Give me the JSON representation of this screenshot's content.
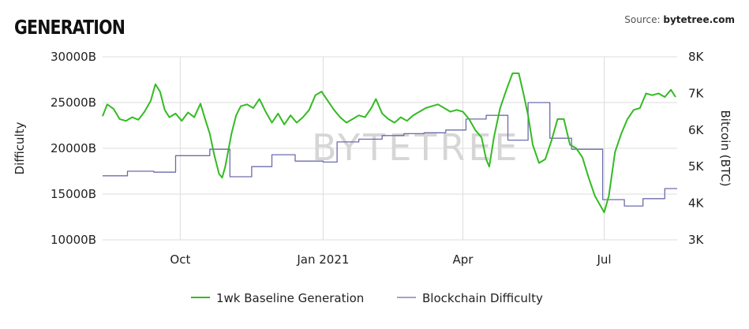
{
  "header": {
    "title": "GENERATION",
    "source_label": "Source:",
    "source_value": "bytetree.com"
  },
  "watermark": "BYTETREE",
  "chart_data": {
    "type": "line",
    "xlabel": "",
    "ylabel": "Difficulty",
    "y2label": "Bitcoin (BTC)",
    "xlim": [
      "2020-08-12",
      "2021-08-17"
    ],
    "ylim": [
      10000,
      30000
    ],
    "y2lim": [
      3000,
      8000
    ],
    "x_ticks": [
      {
        "date": "2020-10-01",
        "label": "Oct"
      },
      {
        "date": "2021-01-01",
        "label": "Jan 2021"
      },
      {
        "date": "2021-04-01",
        "label": "Apr"
      },
      {
        "date": "2021-07-01",
        "label": "Jul"
      }
    ],
    "y_ticks": [
      {
        "value": 10000,
        "label": "10000B"
      },
      {
        "value": 15000,
        "label": "15000B"
      },
      {
        "value": 20000,
        "label": "20000B"
      },
      {
        "value": 25000,
        "label": "25000B"
      },
      {
        "value": 30000,
        "label": "30000B"
      }
    ],
    "y2_ticks": [
      {
        "value": 3000,
        "label": "3K"
      },
      {
        "value": 4000,
        "label": "4K"
      },
      {
        "value": 5000,
        "label": "5K"
      },
      {
        "value": 6000,
        "label": "6K"
      },
      {
        "value": 7000,
        "label": "7K"
      },
      {
        "value": 8000,
        "label": "8K"
      }
    ],
    "grid": true,
    "legend_position": "bottom",
    "series": [
      {
        "name": "1wk Baseline Generation",
        "axis": "right",
        "color": "#33bb22",
        "step": false,
        "points": [
          [
            "2020-08-12",
            6380
          ],
          [
            "2020-08-15",
            6700
          ],
          [
            "2020-08-19",
            6580
          ],
          [
            "2020-08-23",
            6300
          ],
          [
            "2020-08-27",
            6250
          ],
          [
            "2020-08-31",
            6350
          ],
          [
            "2020-09-04",
            6280
          ],
          [
            "2020-09-08",
            6500
          ],
          [
            "2020-09-12",
            6800
          ],
          [
            "2020-09-15",
            7250
          ],
          [
            "2020-09-18",
            7050
          ],
          [
            "2020-09-21",
            6550
          ],
          [
            "2020-09-24",
            6350
          ],
          [
            "2020-09-28",
            6450
          ],
          [
            "2020-10-02",
            6250
          ],
          [
            "2020-10-06",
            6480
          ],
          [
            "2020-10-10",
            6350
          ],
          [
            "2020-10-14",
            6720
          ],
          [
            "2020-10-17",
            6300
          ],
          [
            "2020-10-20",
            5900
          ],
          [
            "2020-10-23",
            5300
          ],
          [
            "2020-10-26",
            4800
          ],
          [
            "2020-10-28",
            4700
          ],
          [
            "2020-10-30",
            5000
          ],
          [
            "2020-11-03",
            5900
          ],
          [
            "2020-11-06",
            6400
          ],
          [
            "2020-11-09",
            6650
          ],
          [
            "2020-11-13",
            6700
          ],
          [
            "2020-11-17",
            6600
          ],
          [
            "2020-11-21",
            6850
          ],
          [
            "2020-11-25",
            6500
          ],
          [
            "2020-11-29",
            6200
          ],
          [
            "2020-12-03",
            6450
          ],
          [
            "2020-12-07",
            6150
          ],
          [
            "2020-12-11",
            6400
          ],
          [
            "2020-12-15",
            6200
          ],
          [
            "2020-12-19",
            6350
          ],
          [
            "2020-12-23",
            6550
          ],
          [
            "2020-12-27",
            6950
          ],
          [
            "2020-12-31",
            7050
          ],
          [
            "2021-01-04",
            6800
          ],
          [
            "2021-01-08",
            6550
          ],
          [
            "2021-01-12",
            6350
          ],
          [
            "2021-01-16",
            6200
          ],
          [
            "2021-01-20",
            6300
          ],
          [
            "2021-01-24",
            6400
          ],
          [
            "2021-01-28",
            6350
          ],
          [
            "2021-02-01",
            6600
          ],
          [
            "2021-02-04",
            6850
          ],
          [
            "2021-02-08",
            6450
          ],
          [
            "2021-02-12",
            6300
          ],
          [
            "2021-02-16",
            6200
          ],
          [
            "2021-02-20",
            6350
          ],
          [
            "2021-02-24",
            6250
          ],
          [
            "2021-02-28",
            6400
          ],
          [
            "2021-03-04",
            6500
          ],
          [
            "2021-03-08",
            6600
          ],
          [
            "2021-03-12",
            6650
          ],
          [
            "2021-03-16",
            6700
          ],
          [
            "2021-03-20",
            6600
          ],
          [
            "2021-03-24",
            6500
          ],
          [
            "2021-03-28",
            6550
          ],
          [
            "2021-04-01",
            6500
          ],
          [
            "2021-04-05",
            6300
          ],
          [
            "2021-04-09",
            6000
          ],
          [
            "2021-04-13",
            5800
          ],
          [
            "2021-04-16",
            5200
          ],
          [
            "2021-04-18",
            5000
          ],
          [
            "2021-04-21",
            5800
          ],
          [
            "2021-04-25",
            6600
          ],
          [
            "2021-04-29",
            7100
          ],
          [
            "2021-05-03",
            7550
          ],
          [
            "2021-05-07",
            7550
          ],
          [
            "2021-05-10",
            7000
          ],
          [
            "2021-05-13",
            6400
          ],
          [
            "2021-05-16",
            5600
          ],
          [
            "2021-05-20",
            5100
          ],
          [
            "2021-05-24",
            5200
          ],
          [
            "2021-05-28",
            5700
          ],
          [
            "2021-06-01",
            6300
          ],
          [
            "2021-06-05",
            6300
          ],
          [
            "2021-06-09",
            5600
          ],
          [
            "2021-06-13",
            5500
          ],
          [
            "2021-06-17",
            5250
          ],
          [
            "2021-06-21",
            4700
          ],
          [
            "2021-06-25",
            4200
          ],
          [
            "2021-06-29",
            3900
          ],
          [
            "2021-07-01",
            3750
          ],
          [
            "2021-07-04",
            4200
          ],
          [
            "2021-07-08",
            5400
          ],
          [
            "2021-07-12",
            5900
          ],
          [
            "2021-07-16",
            6300
          ],
          [
            "2021-07-20",
            6550
          ],
          [
            "2021-07-24",
            6600
          ],
          [
            "2021-07-28",
            7000
          ],
          [
            "2021-08-01",
            6950
          ],
          [
            "2021-08-05",
            7000
          ],
          [
            "2021-08-09",
            6900
          ],
          [
            "2021-08-13",
            7100
          ],
          [
            "2021-08-16",
            6900
          ]
        ]
      },
      {
        "name": "Blockchain Difficulty",
        "axis": "left",
        "color": "#6c6cae",
        "step": true,
        "points": [
          [
            "2020-08-12",
            17000
          ],
          [
            "2020-08-28",
            17500
          ],
          [
            "2020-09-14",
            17400
          ],
          [
            "2020-09-28",
            19200
          ],
          [
            "2020-10-20",
            19900
          ],
          [
            "2020-11-02",
            16900
          ],
          [
            "2020-11-16",
            18000
          ],
          [
            "2020-11-29",
            19300
          ],
          [
            "2020-12-14",
            18600
          ],
          [
            "2021-01-01",
            18500
          ],
          [
            "2021-01-10",
            20700
          ],
          [
            "2021-01-24",
            21000
          ],
          [
            "2021-02-08",
            21400
          ],
          [
            "2021-02-22",
            21600
          ],
          [
            "2021-03-07",
            21700
          ],
          [
            "2021-03-21",
            22000
          ],
          [
            "2021-04-03",
            23200
          ],
          [
            "2021-04-16",
            23600
          ],
          [
            "2021-04-30",
            20900
          ],
          [
            "2021-05-13",
            25000
          ],
          [
            "2021-05-27",
            21100
          ],
          [
            "2021-06-10",
            19900
          ],
          [
            "2021-06-30",
            14400
          ],
          [
            "2021-07-14",
            13700
          ],
          [
            "2021-07-26",
            14500
          ],
          [
            "2021-08-09",
            15600
          ],
          [
            "2021-08-17",
            15600
          ]
        ]
      }
    ]
  }
}
